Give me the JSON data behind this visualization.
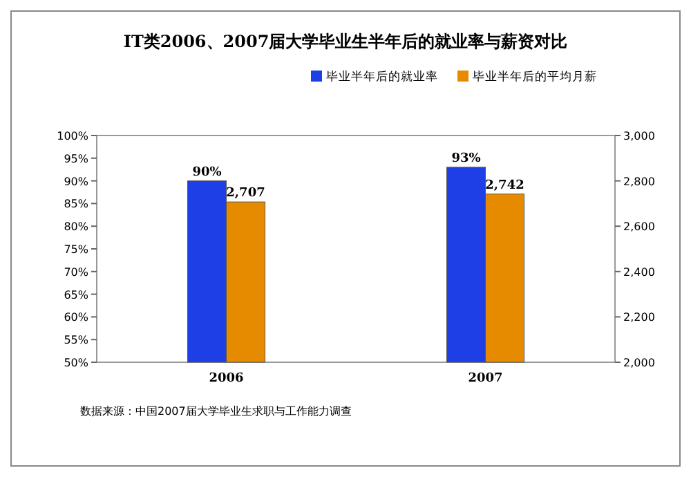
{
  "chart_data": {
    "type": "bar",
    "title": "IT类2006、2007届大学毕业生半年后的就业率与薪资对比",
    "categories": [
      "2006",
      "2007"
    ],
    "series": [
      {
        "name": "毕业半年后的就业率",
        "color": "#1f3fe6",
        "values": [
          90,
          93
        ],
        "value_labels": [
          "90%",
          "93%"
        ]
      },
      {
        "name": "毕业半年后的平均月薪",
        "color": "#e68a00",
        "values": [
          2707,
          2742
        ],
        "value_labels": [
          "2,707",
          "2,742"
        ],
        "axis": "y2"
      }
    ],
    "ylim": [
      50,
      100
    ],
    "yticks": [
      {
        "value": 50,
        "label": "50%"
      },
      {
        "value": 55,
        "label": "55%"
      },
      {
        "value": 60,
        "label": "60%"
      },
      {
        "value": 65,
        "label": "65%"
      },
      {
        "value": 70,
        "label": "70%"
      },
      {
        "value": 75,
        "label": "75%"
      },
      {
        "value": 80,
        "label": "80%"
      },
      {
        "value": 85,
        "label": "85%"
      },
      {
        "value": 90,
        "label": "90%"
      },
      {
        "value": 95,
        "label": "95%"
      },
      {
        "value": 100,
        "label": "100%"
      }
    ],
    "y2lim": [
      2000,
      3000
    ],
    "y2ticks": [
      {
        "value": 2000,
        "label": "2,000"
      },
      {
        "value": 2200,
        "label": "2,200"
      },
      {
        "value": 2400,
        "label": "2,400"
      },
      {
        "value": 2600,
        "label": "2,600"
      },
      {
        "value": 2800,
        "label": "2,800"
      },
      {
        "value": 3000,
        "label": "3,000"
      }
    ],
    "legend": "top right",
    "annotations": [
      "数据来源：中国2007届大学毕业生求职与工作能力调查"
    ]
  }
}
